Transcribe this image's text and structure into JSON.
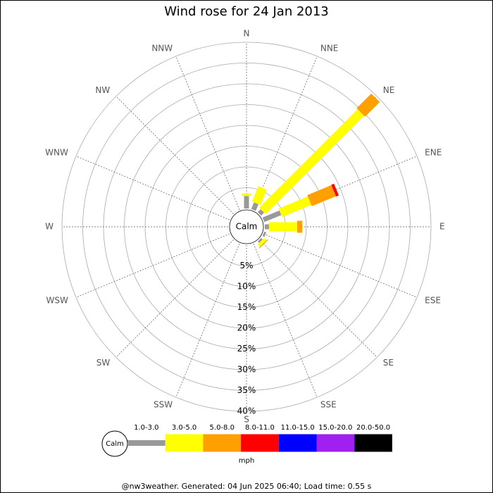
{
  "chart_data": {
    "type": "wind-rose",
    "title": "Wind rose for 24 Jan 2013",
    "directions": [
      "N",
      "NNE",
      "NE",
      "ENE",
      "E",
      "ESE",
      "SE",
      "SSE",
      "S",
      "SSW",
      "SW",
      "WSW",
      "W",
      "WNW",
      "NW",
      "NNW"
    ],
    "rlim": [
      0,
      40
    ],
    "rticks": [
      {
        "value": 5,
        "label": "5%"
      },
      {
        "value": 10,
        "label": "10%"
      },
      {
        "value": 15,
        "label": "15%"
      },
      {
        "value": 20,
        "label": "20%"
      },
      {
        "value": 25,
        "label": "25%"
      },
      {
        "value": 30,
        "label": "30%"
      },
      {
        "value": 35,
        "label": "35%"
      },
      {
        "value": 40,
        "label": "40%"
      }
    ],
    "calm_label": "Calm",
    "unit_label": "mph",
    "series": [
      {
        "name": "1.0-3.0",
        "color": "#999999",
        "values": [
          3,
          1.7,
          1,
          4.4,
          1,
          0.5,
          0.5,
          0,
          0,
          0,
          0,
          0,
          0,
          0,
          0,
          0
        ]
      },
      {
        "name": "3.0-5.0",
        "color": "#ffff00",
        "values": [
          0.6,
          4,
          33.5,
          7.6,
          6.8,
          0,
          0.8,
          0,
          0,
          0,
          0,
          0,
          0,
          0,
          0,
          0
        ]
      },
      {
        "name": "5.0-8.0",
        "color": "#ffa000",
        "values": [
          0,
          0,
          5,
          6.3,
          1.2,
          0,
          0.2,
          0,
          0,
          0,
          0,
          0,
          0,
          0,
          0,
          0
        ]
      },
      {
        "name": "8.0-11.0",
        "color": "#ff0000",
        "values": [
          0,
          0,
          0,
          0.7,
          0,
          0,
          0,
          0,
          0,
          0,
          0,
          0,
          0,
          0,
          0,
          0
        ]
      },
      {
        "name": "11.0-15.0",
        "color": "#0000ff",
        "values": [
          0,
          0,
          0,
          0,
          0,
          0,
          0,
          0,
          0,
          0,
          0,
          0,
          0,
          0,
          0,
          0
        ]
      },
      {
        "name": "15.0-20.0",
        "color": "#a020f0",
        "values": [
          0,
          0,
          0,
          0,
          0,
          0,
          0,
          0,
          0,
          0,
          0,
          0,
          0,
          0,
          0,
          0
        ]
      },
      {
        "name": "20.0-50.0",
        "color": "#000000",
        "values": [
          0,
          0,
          0,
          0,
          0,
          0,
          0,
          0,
          0,
          0,
          0,
          0,
          0,
          0,
          0,
          0
        ]
      }
    ],
    "footer": "@nw3weather. Generated: 04 Jun 2025 06:40; Load time: 0.55 s"
  }
}
